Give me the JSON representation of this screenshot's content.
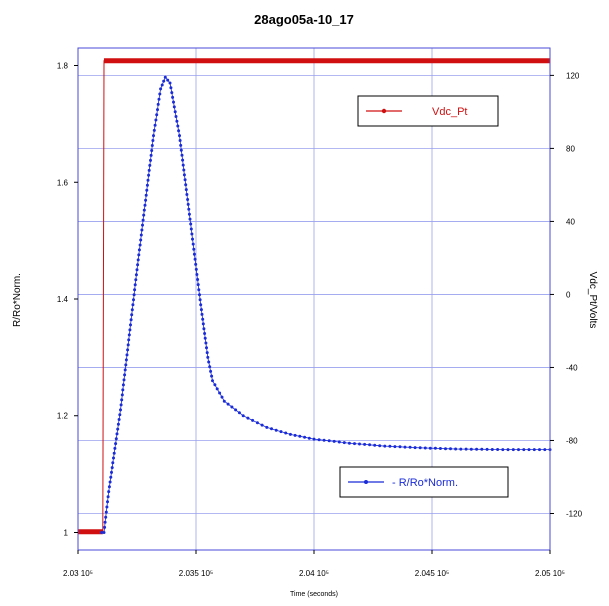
{
  "chart_data": {
    "type": "line",
    "title": "28ago05a-10_17",
    "xlabel": "Time (seconds)",
    "ylabel_left": "R/Ro*Norm.",
    "ylabel_right": "Vdc_Pt/Volts",
    "x_range": [
      2.03,
      2.05
    ],
    "x_ticks": [
      2.03,
      2.035,
      2.04,
      2.045,
      2.05
    ],
    "x_tick_labels": [
      "2.03 10⁵",
      "2.035 10⁵",
      "2.04 10⁵",
      "2.045 10⁵",
      "2.05 10⁵"
    ],
    "y_left_range": [
      0.97,
      1.83
    ],
    "y_left_ticks": [
      1,
      1.2,
      1.4,
      1.6,
      1.8
    ],
    "y_left_tick_labels": [
      "1",
      "1.2",
      "1.4",
      "1.6",
      "1.8"
    ],
    "y_right_range": [
      -140,
      135
    ],
    "y_right_ticks": [
      -120,
      -80,
      -40,
      0,
      40,
      80,
      120
    ],
    "y_right_tick_labels": [
      "-120",
      "-80",
      "-40",
      "0",
      "40",
      "80",
      "120"
    ],
    "grid": true,
    "series": [
      {
        "name": "Vdc_Pt",
        "axis": "right",
        "color": "#d01010",
        "points": [
          [
            2.03,
            -130
          ],
          [
            2.0305,
            -130
          ],
          [
            2.03105,
            -130
          ],
          [
            2.0311,
            128
          ],
          [
            2.05,
            128
          ]
        ]
      },
      {
        "name": "R/Ro*Norm.",
        "axis": "left",
        "color": "#1a2bd8",
        "points": [
          [
            2.031,
            1.0
          ],
          [
            2.0311,
            1.0
          ],
          [
            2.0313,
            1.07
          ],
          [
            2.0318,
            1.21
          ],
          [
            2.0325,
            1.45
          ],
          [
            2.0332,
            1.68
          ],
          [
            2.0335,
            1.76
          ],
          [
            2.0337,
            1.78
          ],
          [
            2.0339,
            1.77
          ],
          [
            2.0343,
            1.68
          ],
          [
            2.0348,
            1.52
          ],
          [
            2.0352,
            1.39
          ],
          [
            2.0355,
            1.3
          ],
          [
            2.0357,
            1.26
          ],
          [
            2.0362,
            1.225
          ],
          [
            2.037,
            1.2
          ],
          [
            2.038,
            1.18
          ],
          [
            2.039,
            1.168
          ],
          [
            2.04,
            1.16
          ],
          [
            2.0415,
            1.153
          ],
          [
            2.043,
            1.148
          ],
          [
            2.0445,
            1.145
          ],
          [
            2.046,
            1.143
          ],
          [
            2.048,
            1.142
          ],
          [
            2.05,
            1.142
          ]
        ]
      }
    ],
    "legends": [
      {
        "series": "Vdc_Pt",
        "position": "upper-right",
        "label": "Vdc_Pt"
      },
      {
        "series": "R/Ro*Norm.",
        "position": "lower-right",
        "label": "- R/Ro*Norm."
      }
    ]
  }
}
